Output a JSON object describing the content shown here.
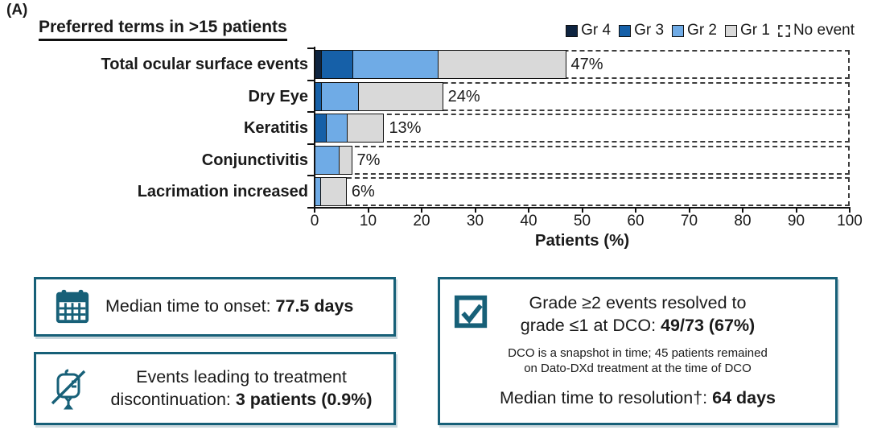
{
  "panel_label": "(A)",
  "chart_data": {
    "type": "bar",
    "orientation": "horizontal",
    "title": "Preferred terms in >15 patients",
    "xlabel": "Patients (%)",
    "xlim": [
      0,
      100
    ],
    "xticks": [
      0,
      10,
      20,
      30,
      40,
      50,
      60,
      70,
      80,
      90,
      100
    ],
    "grid": false,
    "legend_position": "top-right",
    "categories": [
      "Total ocular surface events",
      "Dry Eye",
      "Keratitis",
      "Conjunctivitis",
      "Lacrimation increased"
    ],
    "series": [
      {
        "name": "Gr 4",
        "color": "#0e2440",
        "values": [
          1,
          0,
          0,
          0,
          0
        ]
      },
      {
        "name": "Gr 3",
        "color": "#1660a8",
        "values": [
          6,
          1,
          2,
          0,
          0
        ]
      },
      {
        "name": "Gr 2",
        "color": "#6fabe6",
        "values": [
          16,
          7,
          4,
          4.5,
          1
        ]
      },
      {
        "name": "Gr 1",
        "color": "#d9d9d9",
        "values": [
          24,
          16,
          7,
          2.5,
          5
        ]
      }
    ],
    "no_event_legend": {
      "name": "No event",
      "fill": "#ffffff",
      "border_style": "dashed"
    },
    "bar_total_labels": [
      "47%",
      "24%",
      "13%",
      "7%",
      "6%"
    ]
  },
  "info_boxes": {
    "onset": {
      "icon": "calendar-icon",
      "text_prefix": "Median time to onset: ",
      "value": "77.5 days"
    },
    "discontinuation": {
      "icon": "iv-bag-crossed-icon",
      "line1": "Events leading to treatment",
      "line2_prefix": "discontinuation: ",
      "value": "3 patients (0.9%)"
    },
    "resolution": {
      "icon": "checkbox-checked-icon",
      "line1": "Grade ≥2 events resolved to",
      "line2_prefix": "grade ≤1 at DCO: ",
      "line2_value": "49/73 (67%)",
      "note_line1": "DCO is a snapshot in time; 45 patients remained",
      "note_line2": "on Dato-DXd treatment at the time of DCO",
      "line3_prefix": "Median time to resolution†: ",
      "line3_value": "64 days"
    }
  },
  "colors": {
    "accent_teal": "#176078",
    "bar_border": "#111111",
    "dashed_border": "#3d3d3d",
    "gr4": "#0e2440",
    "gr3": "#1660a8",
    "gr2": "#6fabe6",
    "gr1": "#d9d9d9"
  }
}
